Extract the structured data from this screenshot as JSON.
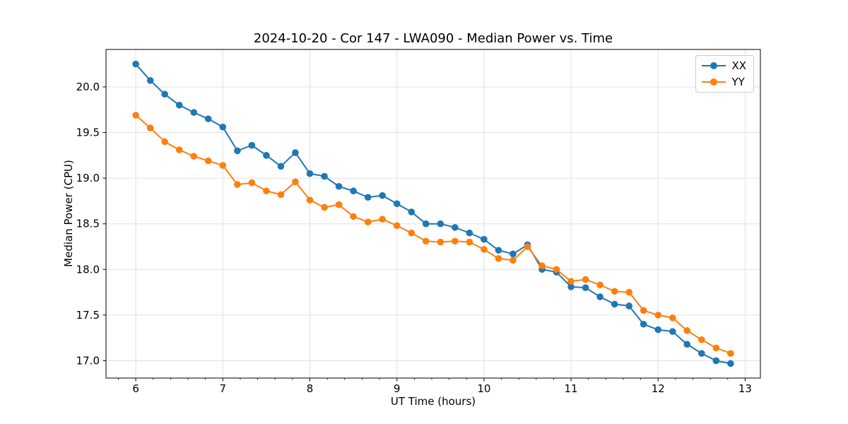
{
  "figure": {
    "background": "#ffffff"
  },
  "chart_data": {
    "type": "line",
    "title": "2024-10-20 - Cor 147 - LWA090 - Median Power vs. Time",
    "xlabel": "UT Time (hours)",
    "ylabel": "Median Power (CPU)",
    "xlim": [
      5.658,
      13.175
    ],
    "ylim": [
      16.81,
      20.41
    ],
    "xticks": [
      6,
      7,
      8,
      9,
      10,
      11,
      12,
      13
    ],
    "xtick_labels": [
      "6",
      "7",
      "8",
      "9",
      "10",
      "11",
      "12",
      "13"
    ],
    "yticks": [
      17.0,
      17.5,
      18.0,
      18.5,
      19.0,
      19.5,
      20.0
    ],
    "ytick_labels": [
      "17.0",
      "17.5",
      "18.0",
      "18.5",
      "19.0",
      "19.5",
      "20.0"
    ],
    "x_minor_tick_step": 0.2,
    "grid": true,
    "legend": {
      "position": "upper-right",
      "entries": [
        "XX",
        "YY"
      ]
    },
    "x": [
      6.0,
      6.167,
      6.333,
      6.5,
      6.667,
      6.833,
      7.0,
      7.167,
      7.333,
      7.5,
      7.667,
      7.833,
      8.0,
      8.167,
      8.333,
      8.5,
      8.667,
      8.833,
      9.0,
      9.167,
      9.333,
      9.5,
      9.667,
      9.833,
      10.0,
      10.167,
      10.333,
      10.5,
      10.667,
      10.833,
      11.0,
      11.167,
      11.333,
      11.5,
      11.667,
      11.833,
      12.0,
      12.167,
      12.333,
      12.5,
      12.667,
      12.833
    ],
    "series": [
      {
        "name": "XX",
        "color": "#1f77b4",
        "marker": "circle",
        "values": [
          20.25,
          20.07,
          19.92,
          19.8,
          19.72,
          19.65,
          19.56,
          19.3,
          19.36,
          19.25,
          19.13,
          19.28,
          19.05,
          19.02,
          18.91,
          18.86,
          18.79,
          18.81,
          18.72,
          18.63,
          18.5,
          18.5,
          18.46,
          18.4,
          18.33,
          18.21,
          18.17,
          18.27,
          18.0,
          17.97,
          17.81,
          17.8,
          17.7,
          17.62,
          17.6,
          17.4,
          17.34,
          17.32,
          17.18,
          17.08,
          17.0,
          16.97
        ]
      },
      {
        "name": "YY",
        "color": "#ff7f0e",
        "marker": "circle",
        "values": [
          19.69,
          19.55,
          19.4,
          19.31,
          19.24,
          19.19,
          19.14,
          18.93,
          18.95,
          18.86,
          18.82,
          18.96,
          18.76,
          18.68,
          18.71,
          18.58,
          18.52,
          18.55,
          18.48,
          18.4,
          18.31,
          18.3,
          18.31,
          18.3,
          18.22,
          18.12,
          18.1,
          18.25,
          18.04,
          18.0,
          17.87,
          17.89,
          17.83,
          17.76,
          17.75,
          17.55,
          17.5,
          17.47,
          17.33,
          17.23,
          17.14,
          17.08
        ]
      }
    ],
    "styles": {
      "grid_color": "#e0e0e0",
      "spine_color": "#000000",
      "tick_color": "#000000",
      "text_color": "#000000"
    }
  }
}
